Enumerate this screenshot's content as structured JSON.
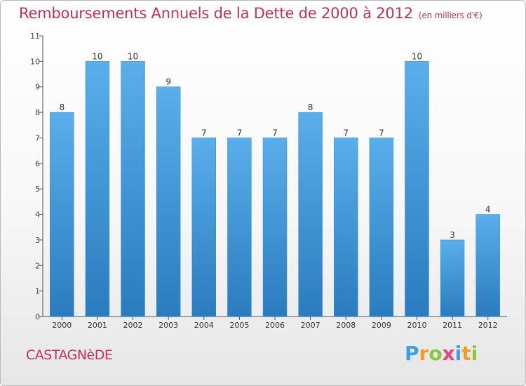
{
  "title": "Remboursements Annuels de la Dette de 2000 à 2012",
  "unit": "(en milliers d'€)",
  "town": "CASTAGNèDE",
  "logo": {
    "letters": [
      "P",
      "r",
      "o",
      "x",
      "i",
      "t",
      "i"
    ],
    "colors": [
      "#3aa0e6",
      "#f39c1e",
      "#8cc63f",
      "#e8457a",
      "#3aa0e6",
      "#f39c1e",
      "#8cc63f"
    ]
  },
  "colors": {
    "bar_top": "#5aaeea",
    "bar_bottom": "#2a7cbf",
    "text": "#c0305a",
    "axis": "#555555"
  },
  "chart_data": {
    "type": "bar",
    "categories": [
      "2000",
      "2001",
      "2002",
      "2003",
      "2004",
      "2005",
      "2006",
      "2007",
      "2008",
      "2009",
      "2010",
      "2011",
      "2012"
    ],
    "values": [
      8,
      10,
      10,
      9,
      7,
      7,
      7,
      8,
      7,
      7,
      10,
      3,
      4
    ],
    "ylim": [
      0,
      11
    ],
    "yticks": [
      "0",
      "1",
      "2",
      "3",
      "4",
      "5",
      "6",
      "7",
      "8",
      "9",
      "10",
      "11"
    ],
    "grid": false,
    "legend": "none"
  }
}
